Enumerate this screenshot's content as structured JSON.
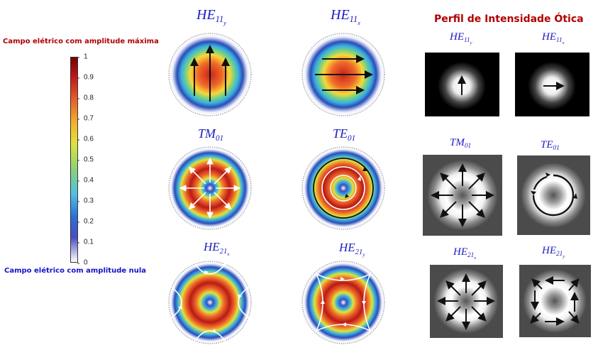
{
  "colorbar": {
    "max_label": "Campo elétrico com amplitude máxima",
    "min_label": "Campo elétrico com amplitude nula",
    "ticks": [
      "1",
      "0.9",
      "0.8",
      "0.7",
      "0.6",
      "0.5",
      "0.4",
      "0.3",
      "0.2",
      "0.1",
      "0"
    ],
    "tick_values": [
      1,
      0.9,
      0.8,
      0.7,
      0.6,
      0.5,
      0.4,
      0.3,
      0.2,
      0.1,
      0
    ]
  },
  "modes": {
    "he11y": {
      "base": "HE",
      "sub": "11",
      "subsub": "y"
    },
    "he11x": {
      "base": "HE",
      "sub": "11",
      "subsub": "x"
    },
    "tm01": {
      "base": "TM",
      "sub": "01",
      "subsub": ""
    },
    "te01": {
      "base": "TE",
      "sub": "01",
      "subsub": ""
    },
    "he21x": {
      "base": "HE",
      "sub": "21",
      "subsub": "x"
    },
    "he21y": {
      "base": "HE",
      "sub": "21",
      "subsub": "y"
    }
  },
  "right_panel": {
    "title": "Perfil de Intensidade Ótica",
    "labels": {
      "he11y": {
        "base": "HE",
        "sub": "11",
        "subsub": "y"
      },
      "he11x": {
        "base": "HE",
        "sub": "11",
        "subsub": "x"
      },
      "tm01": {
        "base": "TM",
        "sub": "01",
        "subsub": ""
      },
      "te01": {
        "base": "TE",
        "sub": "01",
        "subsub": ""
      },
      "he21x": {
        "base": "HE",
        "sub": "21",
        "subsub": "x"
      },
      "he21y": {
        "base": "HE",
        "sub": "21",
        "subsub": "y"
      }
    }
  },
  "colors": {
    "title_red": "#b00000",
    "label_blue": "#1c1cc0",
    "max_red": "#b00000",
    "min_blue": "#1414c8"
  }
}
